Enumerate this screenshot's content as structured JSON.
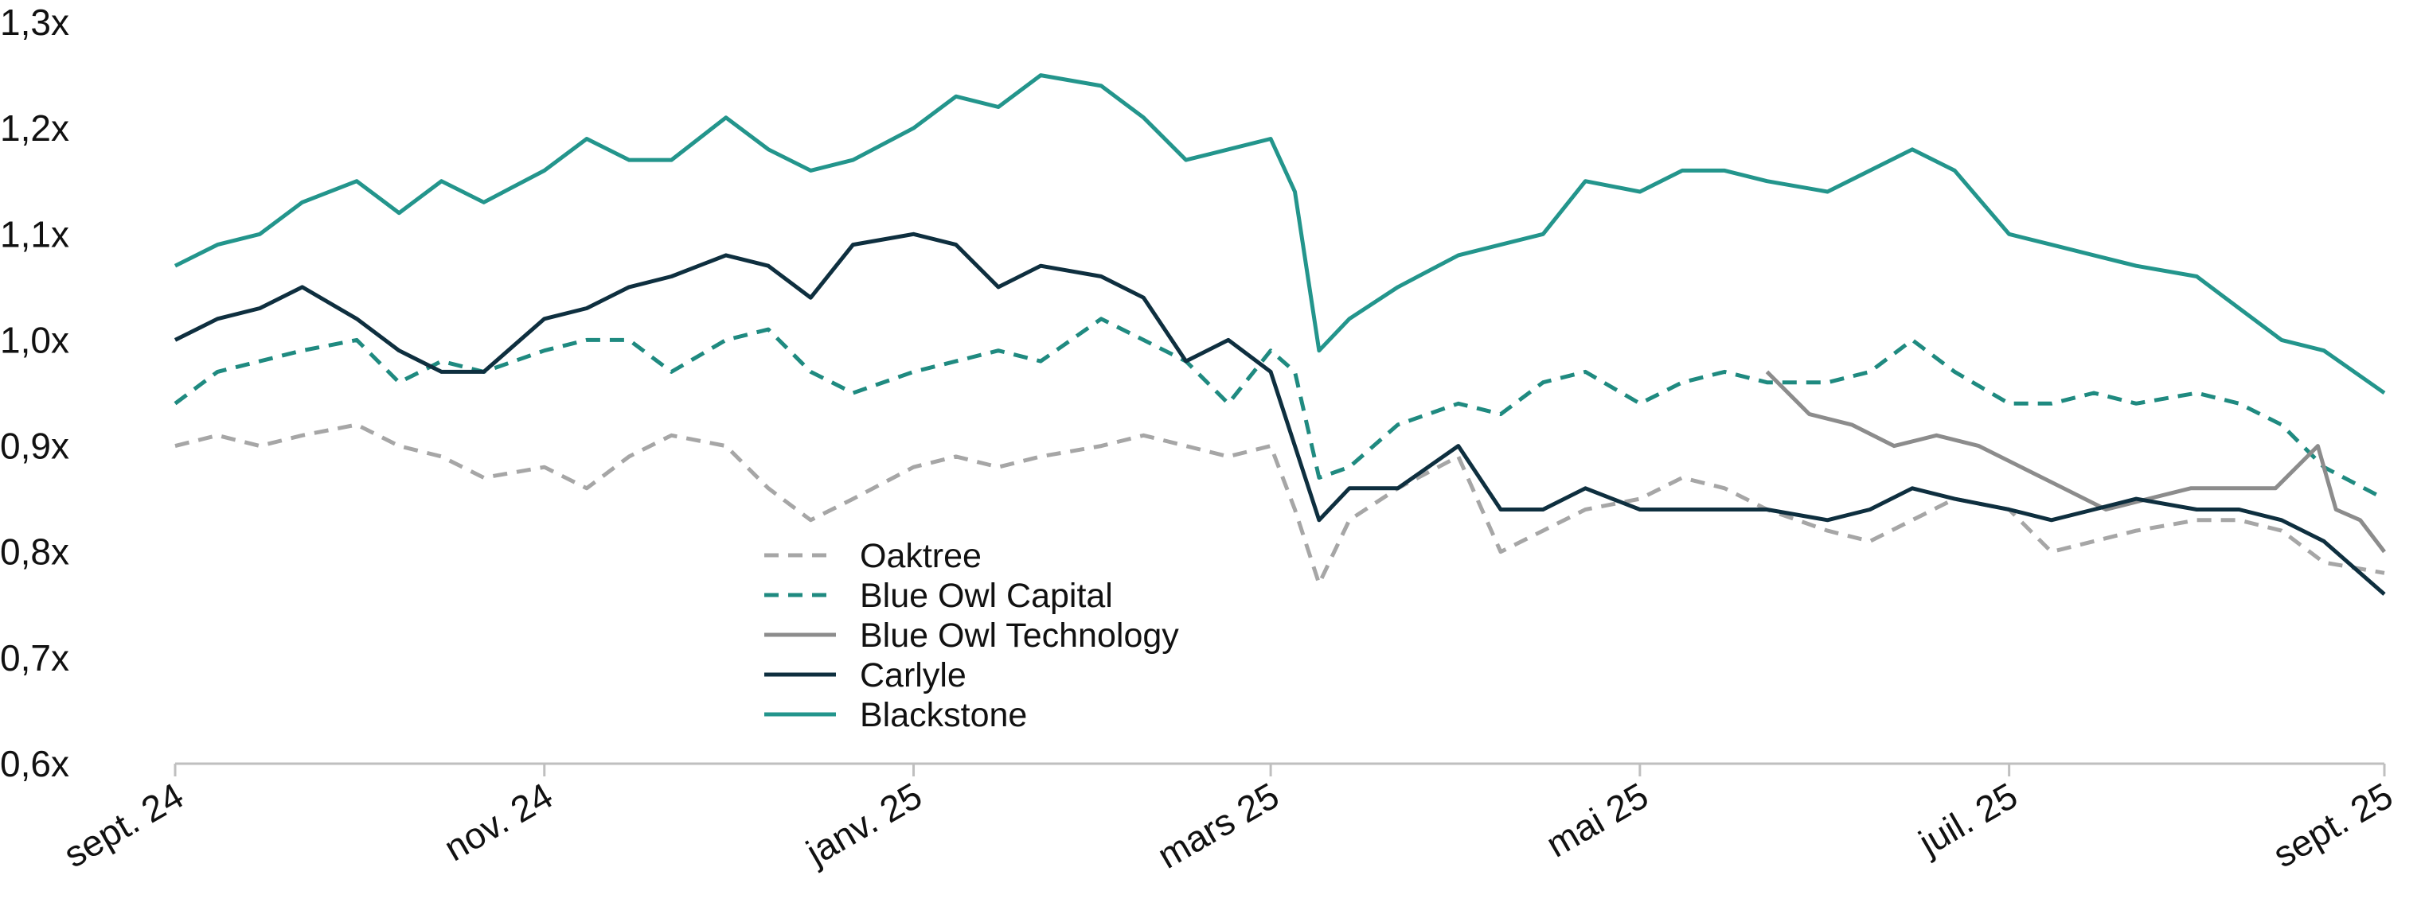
{
  "chart_data": {
    "type": "line",
    "title": "",
    "xlabel": "",
    "ylabel": "",
    "ylim": [
      0.6,
      1.3
    ],
    "y_ticks": [
      {
        "value": 1.3,
        "label": "1,3x"
      },
      {
        "value": 1.2,
        "label": "1,2x"
      },
      {
        "value": 1.1,
        "label": "1,1x"
      },
      {
        "value": 1.0,
        "label": "1,0x"
      },
      {
        "value": 0.9,
        "label": "0,9x"
      },
      {
        "value": 0.8,
        "label": "0,8x"
      },
      {
        "value": 0.7,
        "label": "0,7x"
      },
      {
        "value": 0.6,
        "label": "0,6x"
      }
    ],
    "x_ticks": [
      {
        "date": "2024-09-01",
        "label": "sept. 24"
      },
      {
        "date": "2024-11-01",
        "label": "nov. 24"
      },
      {
        "date": "2025-01-01",
        "label": "janv. 25"
      },
      {
        "date": "2025-03-01",
        "label": "mars 25"
      },
      {
        "date": "2025-05-01",
        "label": "mai 25"
      },
      {
        "date": "2025-07-01",
        "label": "juil. 25"
      },
      {
        "date": "2025-09-01",
        "label": "sept. 25"
      }
    ],
    "xlim": [
      "2024-09-01",
      "2025-09-01"
    ],
    "grid": false,
    "legend_position": "center-left",
    "series": [
      {
        "name": "Oaktree",
        "color": "#a6a6a6",
        "dash": "dashed",
        "points": [
          [
            "2024-09-01",
            0.9
          ],
          [
            "2024-09-08",
            0.91
          ],
          [
            "2024-09-15",
            0.9
          ],
          [
            "2024-09-22",
            0.91
          ],
          [
            "2024-10-01",
            0.92
          ],
          [
            "2024-10-08",
            0.9
          ],
          [
            "2024-10-15",
            0.89
          ],
          [
            "2024-10-22",
            0.87
          ],
          [
            "2024-11-01",
            0.88
          ],
          [
            "2024-11-08",
            0.86
          ],
          [
            "2024-11-15",
            0.89
          ],
          [
            "2024-11-22",
            0.91
          ],
          [
            "2024-12-01",
            0.9
          ],
          [
            "2024-12-08",
            0.86
          ],
          [
            "2024-12-15",
            0.83
          ],
          [
            "2024-12-22",
            0.85
          ],
          [
            "2025-01-01",
            0.88
          ],
          [
            "2025-01-08",
            0.89
          ],
          [
            "2025-01-15",
            0.88
          ],
          [
            "2025-01-22",
            0.89
          ],
          [
            "2025-02-01",
            0.9
          ],
          [
            "2025-02-08",
            0.91
          ],
          [
            "2025-02-15",
            0.9
          ],
          [
            "2025-02-22",
            0.89
          ],
          [
            "2025-03-01",
            0.9
          ],
          [
            "2025-03-05",
            0.84
          ],
          [
            "2025-03-09",
            0.77
          ],
          [
            "2025-03-14",
            0.83
          ],
          [
            "2025-03-22",
            0.86
          ],
          [
            "2025-04-01",
            0.89
          ],
          [
            "2025-04-08",
            0.8
          ],
          [
            "2025-04-15",
            0.82
          ],
          [
            "2025-04-22",
            0.84
          ],
          [
            "2025-05-01",
            0.85
          ],
          [
            "2025-05-08",
            0.87
          ],
          [
            "2025-05-15",
            0.86
          ],
          [
            "2025-05-22",
            0.84
          ],
          [
            "2025-06-01",
            0.82
          ],
          [
            "2025-06-08",
            0.81
          ],
          [
            "2025-06-15",
            0.83
          ],
          [
            "2025-06-22",
            0.85
          ],
          [
            "2025-07-01",
            0.84
          ],
          [
            "2025-07-08",
            0.8
          ],
          [
            "2025-07-15",
            0.81
          ],
          [
            "2025-07-22",
            0.82
          ],
          [
            "2025-08-01",
            0.83
          ],
          [
            "2025-08-08",
            0.83
          ],
          [
            "2025-08-15",
            0.82
          ],
          [
            "2025-08-22",
            0.79
          ],
          [
            "2025-09-01",
            0.78
          ]
        ]
      },
      {
        "name": "Blue Owl Capital",
        "color": "#1f8a80",
        "dash": "dashed",
        "points": [
          [
            "2024-09-01",
            0.94
          ],
          [
            "2024-09-08",
            0.97
          ],
          [
            "2024-09-15",
            0.98
          ],
          [
            "2024-09-22",
            0.99
          ],
          [
            "2024-10-01",
            1.0
          ],
          [
            "2024-10-08",
            0.96
          ],
          [
            "2024-10-15",
            0.98
          ],
          [
            "2024-10-22",
            0.97
          ],
          [
            "2024-11-01",
            0.99
          ],
          [
            "2024-11-08",
            1.0
          ],
          [
            "2024-11-15",
            1.0
          ],
          [
            "2024-11-22",
            0.97
          ],
          [
            "2024-12-01",
            1.0
          ],
          [
            "2024-12-08",
            1.01
          ],
          [
            "2024-12-15",
            0.97
          ],
          [
            "2024-12-22",
            0.95
          ],
          [
            "2025-01-01",
            0.97
          ],
          [
            "2025-01-08",
            0.98
          ],
          [
            "2025-01-15",
            0.99
          ],
          [
            "2025-01-22",
            0.98
          ],
          [
            "2025-02-01",
            1.02
          ],
          [
            "2025-02-08",
            1.0
          ],
          [
            "2025-02-15",
            0.98
          ],
          [
            "2025-02-22",
            0.94
          ],
          [
            "2025-03-01",
            0.99
          ],
          [
            "2025-03-05",
            0.97
          ],
          [
            "2025-03-09",
            0.87
          ],
          [
            "2025-03-14",
            0.88
          ],
          [
            "2025-03-22",
            0.92
          ],
          [
            "2025-04-01",
            0.94
          ],
          [
            "2025-04-08",
            0.93
          ],
          [
            "2025-04-15",
            0.96
          ],
          [
            "2025-04-22",
            0.97
          ],
          [
            "2025-05-01",
            0.94
          ],
          [
            "2025-05-08",
            0.96
          ],
          [
            "2025-05-15",
            0.97
          ],
          [
            "2025-05-22",
            0.96
          ],
          [
            "2025-06-01",
            0.96
          ],
          [
            "2025-06-08",
            0.97
          ],
          [
            "2025-06-15",
            1.0
          ],
          [
            "2025-06-22",
            0.97
          ],
          [
            "2025-07-01",
            0.94
          ],
          [
            "2025-07-08",
            0.94
          ],
          [
            "2025-07-15",
            0.95
          ],
          [
            "2025-07-22",
            0.94
          ],
          [
            "2025-08-01",
            0.95
          ],
          [
            "2025-08-08",
            0.94
          ],
          [
            "2025-08-15",
            0.92
          ],
          [
            "2025-08-22",
            0.88
          ],
          [
            "2025-09-01",
            0.85
          ]
        ]
      },
      {
        "name": "Blue Owl Technology",
        "color": "#8c8c8c",
        "dash": "solid",
        "points": [
          [
            "2025-05-22",
            0.97
          ],
          [
            "2025-05-29",
            0.93
          ],
          [
            "2025-06-05",
            0.92
          ],
          [
            "2025-06-12",
            0.9
          ],
          [
            "2025-06-19",
            0.91
          ],
          [
            "2025-06-26",
            0.9
          ],
          [
            "2025-07-03",
            0.88
          ],
          [
            "2025-07-10",
            0.86
          ],
          [
            "2025-07-17",
            0.84
          ],
          [
            "2025-07-24",
            0.85
          ],
          [
            "2025-07-31",
            0.86
          ],
          [
            "2025-08-07",
            0.86
          ],
          [
            "2025-08-14",
            0.86
          ],
          [
            "2025-08-21",
            0.9
          ],
          [
            "2025-08-24",
            0.84
          ],
          [
            "2025-08-28",
            0.83
          ],
          [
            "2025-09-01",
            0.8
          ]
        ]
      },
      {
        "name": "Carlyle",
        "color": "#0e2f3f",
        "dash": "solid",
        "points": [
          [
            "2024-09-01",
            1.0
          ],
          [
            "2024-09-08",
            1.02
          ],
          [
            "2024-09-15",
            1.03
          ],
          [
            "2024-09-22",
            1.05
          ],
          [
            "2024-10-01",
            1.02
          ],
          [
            "2024-10-08",
            0.99
          ],
          [
            "2024-10-15",
            0.97
          ],
          [
            "2024-10-22",
            0.97
          ],
          [
            "2024-11-01",
            1.02
          ],
          [
            "2024-11-08",
            1.03
          ],
          [
            "2024-11-15",
            1.05
          ],
          [
            "2024-11-22",
            1.06
          ],
          [
            "2024-12-01",
            1.08
          ],
          [
            "2024-12-08",
            1.07
          ],
          [
            "2024-12-15",
            1.04
          ],
          [
            "2024-12-22",
            1.09
          ],
          [
            "2025-01-01",
            1.1
          ],
          [
            "2025-01-08",
            1.09
          ],
          [
            "2025-01-15",
            1.05
          ],
          [
            "2025-01-22",
            1.07
          ],
          [
            "2025-02-01",
            1.06
          ],
          [
            "2025-02-08",
            1.04
          ],
          [
            "2025-02-15",
            0.98
          ],
          [
            "2025-02-22",
            1.0
          ],
          [
            "2025-03-01",
            0.97
          ],
          [
            "2025-03-05",
            0.9
          ],
          [
            "2025-03-09",
            0.83
          ],
          [
            "2025-03-14",
            0.86
          ],
          [
            "2025-03-22",
            0.86
          ],
          [
            "2025-04-01",
            0.9
          ],
          [
            "2025-04-08",
            0.84
          ],
          [
            "2025-04-15",
            0.84
          ],
          [
            "2025-04-22",
            0.86
          ],
          [
            "2025-05-01",
            0.84
          ],
          [
            "2025-05-08",
            0.84
          ],
          [
            "2025-05-15",
            0.84
          ],
          [
            "2025-05-22",
            0.84
          ],
          [
            "2025-06-01",
            0.83
          ],
          [
            "2025-06-08",
            0.84
          ],
          [
            "2025-06-15",
            0.86
          ],
          [
            "2025-06-22",
            0.85
          ],
          [
            "2025-07-01",
            0.84
          ],
          [
            "2025-07-08",
            0.83
          ],
          [
            "2025-07-15",
            0.84
          ],
          [
            "2025-07-22",
            0.85
          ],
          [
            "2025-08-01",
            0.84
          ],
          [
            "2025-08-08",
            0.84
          ],
          [
            "2025-08-15",
            0.83
          ],
          [
            "2025-08-22",
            0.81
          ],
          [
            "2025-09-01",
            0.76
          ]
        ]
      },
      {
        "name": "Blackstone",
        "color": "#23958c",
        "dash": "solid",
        "points": [
          [
            "2024-09-01",
            1.07
          ],
          [
            "2024-09-08",
            1.09
          ],
          [
            "2024-09-15",
            1.1
          ],
          [
            "2024-09-22",
            1.13
          ],
          [
            "2024-10-01",
            1.15
          ],
          [
            "2024-10-08",
            1.12
          ],
          [
            "2024-10-15",
            1.15
          ],
          [
            "2024-10-22",
            1.13
          ],
          [
            "2024-11-01",
            1.16
          ],
          [
            "2024-11-08",
            1.19
          ],
          [
            "2024-11-15",
            1.17
          ],
          [
            "2024-11-22",
            1.17
          ],
          [
            "2024-12-01",
            1.21
          ],
          [
            "2024-12-08",
            1.18
          ],
          [
            "2024-12-15",
            1.16
          ],
          [
            "2024-12-22",
            1.17
          ],
          [
            "2025-01-01",
            1.2
          ],
          [
            "2025-01-08",
            1.23
          ],
          [
            "2025-01-15",
            1.22
          ],
          [
            "2025-01-22",
            1.25
          ],
          [
            "2025-02-01",
            1.24
          ],
          [
            "2025-02-08",
            1.21
          ],
          [
            "2025-02-15",
            1.17
          ],
          [
            "2025-02-22",
            1.18
          ],
          [
            "2025-03-01",
            1.19
          ],
          [
            "2025-03-05",
            1.14
          ],
          [
            "2025-03-09",
            0.99
          ],
          [
            "2025-03-14",
            1.02
          ],
          [
            "2025-03-22",
            1.05
          ],
          [
            "2025-04-01",
            1.08
          ],
          [
            "2025-04-08",
            1.09
          ],
          [
            "2025-04-15",
            1.1
          ],
          [
            "2025-04-22",
            1.15
          ],
          [
            "2025-05-01",
            1.14
          ],
          [
            "2025-05-08",
            1.16
          ],
          [
            "2025-05-15",
            1.16
          ],
          [
            "2025-05-22",
            1.15
          ],
          [
            "2025-06-01",
            1.14
          ],
          [
            "2025-06-08",
            1.16
          ],
          [
            "2025-06-15",
            1.18
          ],
          [
            "2025-06-22",
            1.16
          ],
          [
            "2025-07-01",
            1.1
          ],
          [
            "2025-07-08",
            1.09
          ],
          [
            "2025-07-15",
            1.08
          ],
          [
            "2025-07-22",
            1.07
          ],
          [
            "2025-08-01",
            1.06
          ],
          [
            "2025-08-08",
            1.03
          ],
          [
            "2025-08-15",
            1.0
          ],
          [
            "2025-08-22",
            0.99
          ],
          [
            "2025-09-01",
            0.95
          ]
        ]
      }
    ]
  }
}
